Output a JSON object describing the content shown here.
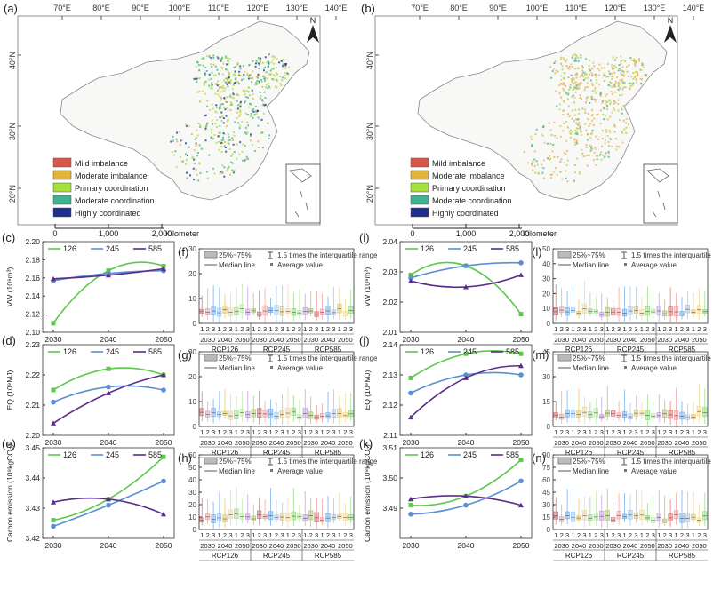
{
  "maps": [
    {
      "label": "(a)",
      "lon_ticks": [
        "70°E",
        "80°E",
        "90°E",
        "100°E",
        "110°E",
        "120°E",
        "130°E",
        "140°E"
      ],
      "lat_ticks": [
        "40°N",
        "30°N",
        "20°N"
      ],
      "north": "N",
      "legend": [
        "Mild imbalance",
        "Moderate imbalance",
        "Primary coordination",
        "Moderate coordination",
        "Highly coordinated"
      ],
      "scale_ticks": [
        "0",
        "1,000",
        "2,000"
      ],
      "scale_unit": "Kilometer"
    },
    {
      "label": "(b)",
      "lon_ticks": [
        "70°E",
        "80°E",
        "90°E",
        "100°E",
        "110°E",
        "120°E",
        "130°E",
        "140°E"
      ],
      "lat_ticks": [
        "40°N",
        "30°N",
        "20°N"
      ],
      "north": "N",
      "legend": [
        "Mild imbalance",
        "Moderate imbalance",
        "Primary coordination",
        "Moderate coordination",
        "Highly coordinated"
      ],
      "scale_ticks": [
        "0",
        "1,000",
        "2,000"
      ],
      "scale_unit": "Kilometer"
    }
  ],
  "colors": {
    "mild": "#d9574a",
    "moderate_imb": "#e2b53a",
    "primary": "#a6e13a",
    "moderate_coord": "#3fb38e",
    "high": "#1f2f8c",
    "s126": "#5cc94a",
    "s245": "#5b8fd1",
    "s585": "#5a2d8c",
    "box_cols": [
      "#e07b7b",
      "#f0a8a8",
      "#7fb3e6",
      "#a9cdf2",
      "#e8c86a",
      "#f2dd9a",
      "#9ddc8c",
      "#c2e9b3",
      "#c9a3e0",
      "#b8c96a"
    ]
  },
  "chart_data": [
    {
      "label": "(c)",
      "type": "line",
      "ylabel": "VW (10⁹m³)",
      "x": [
        2030,
        2040,
        2050
      ],
      "ylim": [
        2.1,
        2.2
      ],
      "yticks": [
        "2.10",
        "2.12",
        "2.14",
        "2.16",
        "2.18",
        "2.20"
      ],
      "series": [
        {
          "name": "126",
          "values": [
            2.11,
            2.168,
            2.173
          ]
        },
        {
          "name": "245",
          "values": [
            2.157,
            2.165,
            2.168
          ]
        },
        {
          "name": "585",
          "values": [
            2.159,
            2.163,
            2.17
          ]
        }
      ]
    },
    {
      "label": "(d)",
      "type": "line",
      "ylabel": "EQ (10⁹MJ)",
      "x": [
        2030,
        2040,
        2050
      ],
      "ylim": [
        2.2,
        2.23
      ],
      "yticks": [
        "2.20",
        "2.21",
        "2.22",
        "2.23"
      ],
      "series": [
        {
          "name": "126",
          "values": [
            2.215,
            2.222,
            2.22
          ]
        },
        {
          "name": "245",
          "values": [
            2.211,
            2.216,
            2.215
          ]
        },
        {
          "name": "585",
          "values": [
            2.204,
            2.214,
            2.22
          ]
        }
      ]
    },
    {
      "label": "(e)",
      "type": "line",
      "ylabel": "Carbon emission (10⁹kgCO₂)",
      "x": [
        2030,
        2040,
        2050
      ],
      "ylim": [
        3.42,
        3.45
      ],
      "yticks": [
        "3.42",
        "3.43",
        "3.44",
        "3.45"
      ],
      "series": [
        {
          "name": "126",
          "values": [
            3.426,
            3.433,
            3.447
          ]
        },
        {
          "name": "245",
          "values": [
            3.424,
            3.431,
            3.439
          ]
        },
        {
          "name": "585",
          "values": [
            3.432,
            3.433,
            3.428
          ]
        }
      ]
    },
    {
      "label": "(i)",
      "type": "line",
      "ylabel": "VW (10⁹m³)",
      "x": [
        2030,
        2040,
        2050
      ],
      "ylim": [
        2.01,
        2.04
      ],
      "yticks": [
        "2.01",
        "2.02",
        "2.03",
        "2.04"
      ],
      "series": [
        {
          "name": "126",
          "values": [
            2.029,
            2.032,
            2.016
          ]
        },
        {
          "name": "245",
          "values": [
            2.028,
            2.032,
            2.033
          ]
        },
        {
          "name": "585",
          "values": [
            2.027,
            2.025,
            2.029
          ]
        }
      ]
    },
    {
      "label": "(j)",
      "type": "line",
      "ylabel": "EQ (10⁹MJ)",
      "x": [
        2030,
        2040,
        2050
      ],
      "ylim": [
        2.11,
        2.14
      ],
      "yticks": [
        "2.11",
        "2.12",
        "2.13",
        "2.14"
      ],
      "series": [
        {
          "name": "126",
          "values": [
            2.129,
            2.137,
            2.137
          ]
        },
        {
          "name": "245",
          "values": [
            2.124,
            2.13,
            2.13
          ]
        },
        {
          "name": "585",
          "values": [
            2.116,
            2.129,
            2.133
          ]
        }
      ]
    },
    {
      "label": "(k)",
      "type": "line",
      "ylabel": "Carbon emission (10⁹kgCO₂)",
      "x": [
        2030,
        2040,
        2050
      ],
      "ylim": [
        3.48,
        3.51
      ],
      "yticks": [
        "3.49",
        "3.50",
        "3.51"
      ],
      "series": [
        {
          "name": "126",
          "values": [
            3.491,
            3.494,
            3.506
          ]
        },
        {
          "name": "245",
          "values": [
            3.488,
            3.491,
            3.499
          ]
        },
        {
          "name": "585",
          "values": [
            3.493,
            3.494,
            3.491
          ]
        }
      ]
    },
    {
      "label": "(f)",
      "type": "box",
      "ylim": [
        0,
        30
      ],
      "yticks": [
        "0",
        "10",
        "20",
        "30"
      ],
      "seed": 1
    },
    {
      "label": "(g)",
      "type": "box",
      "ylim": [
        0,
        30
      ],
      "yticks": [
        "0",
        "10",
        "20",
        "30"
      ],
      "seed": 2
    },
    {
      "label": "(h)",
      "type": "box",
      "ylim": [
        0,
        60
      ],
      "yticks": [
        "0",
        "10",
        "20",
        "30",
        "40",
        "50",
        "60"
      ],
      "seed": 3
    },
    {
      "label": "(l)",
      "type": "box",
      "ylim": [
        0,
        50
      ],
      "yticks": [
        "0",
        "10",
        "20",
        "30",
        "40",
        "50"
      ],
      "seed": 4
    },
    {
      "label": "(m)",
      "type": "box",
      "ylim": [
        0,
        45
      ],
      "yticks": [
        "0",
        "15",
        "30",
        "45"
      ],
      "seed": 5
    },
    {
      "label": "(n)",
      "type": "box",
      "ylim": [
        0,
        90
      ],
      "yticks": [
        "0",
        "15",
        "30",
        "45",
        "60",
        "75",
        "90"
      ],
      "seed": 6
    }
  ],
  "box_legend": {
    "range": "25%~75%",
    "median": "Median line",
    "whisker": "1.5 times the interquartile range",
    "average": "Average value"
  },
  "box_axis": {
    "sub": [
      "1",
      "2",
      "3",
      "1",
      "2",
      "3",
      "1",
      "2",
      "3"
    ],
    "years": [
      "2030",
      "2040",
      "2050"
    ],
    "scenarios": [
      "RCP126",
      "RCP245",
      "RCP585"
    ]
  },
  "line_legend": [
    "126",
    "245",
    "585"
  ]
}
